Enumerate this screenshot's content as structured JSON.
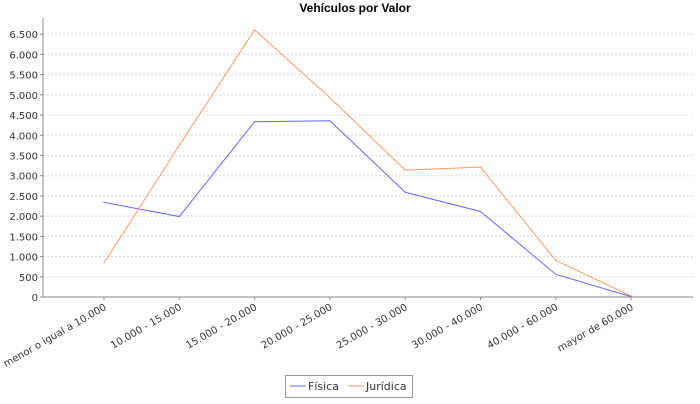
{
  "chart_data": {
    "type": "line",
    "title": "Vehículos por Valor",
    "xlabel": "",
    "ylabel": "",
    "categories": [
      "menor o igual a 10.000",
      "10.000 - 15.000",
      "15.000 - 20.000",
      "20.000 - 25.000",
      "25.000 - 30.000",
      "30.000 - 40.000",
      "40.000 - 60.000",
      "mayor de 60.000"
    ],
    "ylim": [
      0,
      6900
    ],
    "yticks": [
      0,
      500,
      1000,
      1500,
      2000,
      2500,
      3000,
      3500,
      4000,
      4500,
      5000,
      5500,
      6000,
      6500
    ],
    "ytick_labels": [
      "0",
      "500",
      "1.000",
      "1.500",
      "2.000",
      "2.500",
      "3.000",
      "3.500",
      "4.000",
      "4.500",
      "5.000",
      "5.500",
      "6.000",
      "6.500"
    ],
    "grid": true,
    "legend_position": "bottom",
    "series": [
      {
        "name": "Física",
        "color": "#6666ff",
        "values": [
          2340,
          1990,
          4335,
          4360,
          2590,
          2115,
          560,
          10
        ]
      },
      {
        "name": "Jurídica",
        "color": "#ff9966",
        "values": [
          840,
          3750,
          6605,
          4930,
          3137,
          3212,
          905,
          25
        ]
      }
    ]
  }
}
